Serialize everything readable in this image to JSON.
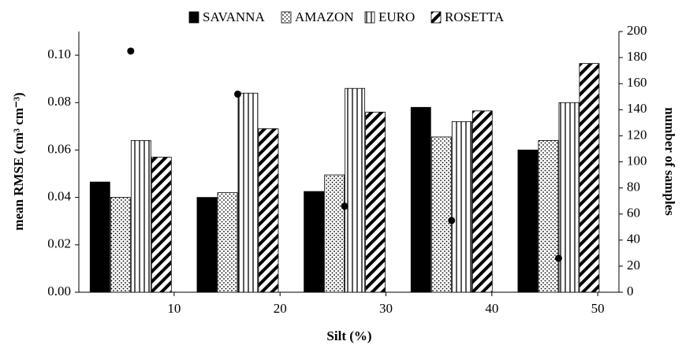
{
  "chart_data": {
    "type": "bar",
    "x_label": "Silt (%)",
    "y_label": "mean RMSE (cm³ cm⁻³)",
    "y2_label": "number of samples",
    "x": [
      5.9,
      16,
      26.1,
      36.2,
      46.3
    ],
    "xlim": [
      1,
      52
    ],
    "xticks": [
      10,
      20,
      30,
      40,
      50
    ],
    "ylim": [
      0,
      0.11
    ],
    "yticks": [
      {
        "value": 0,
        "label": "0.00"
      },
      {
        "value": 0.02,
        "label": "0.02"
      },
      {
        "value": 0.04,
        "label": "0.04"
      },
      {
        "value": 0.06,
        "label": "0.06"
      },
      {
        "value": 0.08,
        "label": "0.08"
      },
      {
        "value": 0.1,
        "label": "0.10"
      }
    ],
    "y2lim": [
      0,
      200
    ],
    "y2ticks": [
      0,
      20,
      40,
      60,
      80,
      100,
      120,
      140,
      160,
      180,
      200
    ],
    "legend": "top",
    "series": [
      {
        "name": "SAVANNA",
        "color": "#000000",
        "pattern": "solid",
        "values": [
          0.0465,
          0.04,
          0.0425,
          0.078,
          0.06
        ]
      },
      {
        "name": "AMAZON",
        "color": "#000000",
        "pattern": "dots",
        "values": [
          0.04,
          0.042,
          0.0495,
          0.0655,
          0.064
        ]
      },
      {
        "name": "EURO",
        "color": "#000000",
        "pattern": "vertical",
        "values": [
          0.064,
          0.084,
          0.086,
          0.072,
          0.08
        ]
      },
      {
        "name": "ROSETTA",
        "color": "#000000",
        "pattern": "diagonal",
        "values": [
          0.057,
          0.069,
          0.076,
          0.0765,
          0.0965
        ]
      }
    ],
    "points": {
      "type": "scatter",
      "axis": "y2",
      "color": "#000000",
      "values": [
        185,
        152,
        66,
        55,
        26
      ]
    }
  }
}
